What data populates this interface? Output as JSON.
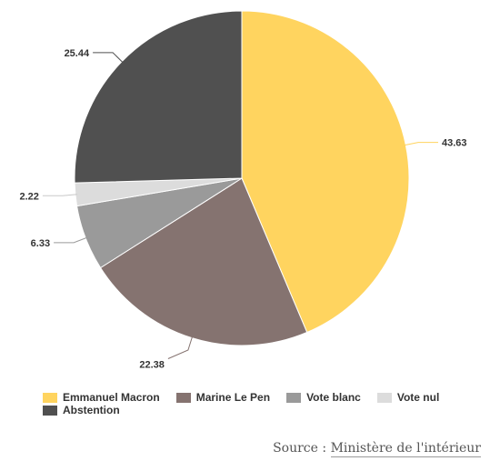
{
  "chart_data": {
    "type": "pie",
    "slices": [
      {
        "label": "Emmanuel Macron",
        "value": 43.63,
        "value_label": "43.63",
        "color": "#FFD45F"
      },
      {
        "label": "Marine Le Pen",
        "value": 22.38,
        "value_label": "22.38",
        "color": "#857370"
      },
      {
        "label": "Vote blanc",
        "value": 6.33,
        "value_label": "6.33",
        "color": "#9A9A9A"
      },
      {
        "label": "Vote nul",
        "value": 2.22,
        "value_label": "2.22",
        "color": "#DCDCDC"
      },
      {
        "label": "Abstention",
        "value": 25.44,
        "value_label": "25.44",
        "color": "#505050"
      }
    ],
    "legend_position": "bottom-left"
  },
  "source": {
    "prefix": "Source : ",
    "link_text": "Ministère de l'intérieur"
  }
}
